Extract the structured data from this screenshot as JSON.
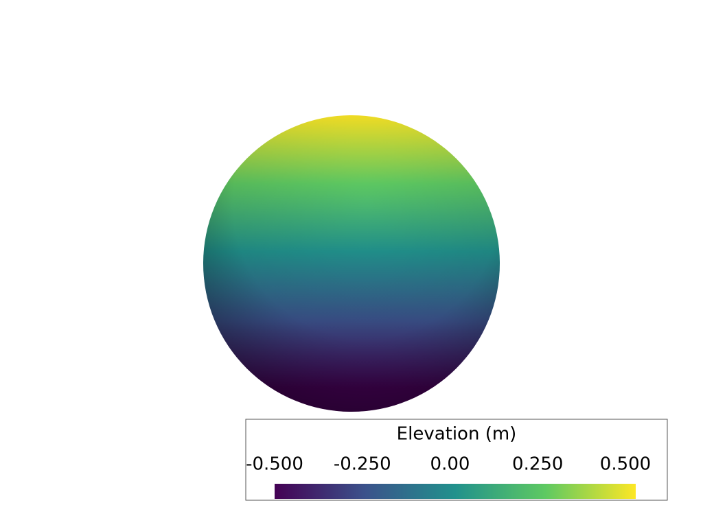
{
  "chart_data": {
    "type": "surface",
    "title": "Elevation (m)",
    "clim": [
      -0.5,
      0.5
    ],
    "ticks": [
      {
        "value": -0.5,
        "label": "-0.500"
      },
      {
        "value": -0.25,
        "label": "-0.250"
      },
      {
        "value": 0,
        "label": "0.00"
      },
      {
        "value": 0.25,
        "label": "0.250"
      },
      {
        "value": 0.5,
        "label": "0.500"
      }
    ],
    "colormap": [
      "#440154",
      "#3b528b",
      "#21918c",
      "#5ec962",
      "#fde725"
    ]
  }
}
